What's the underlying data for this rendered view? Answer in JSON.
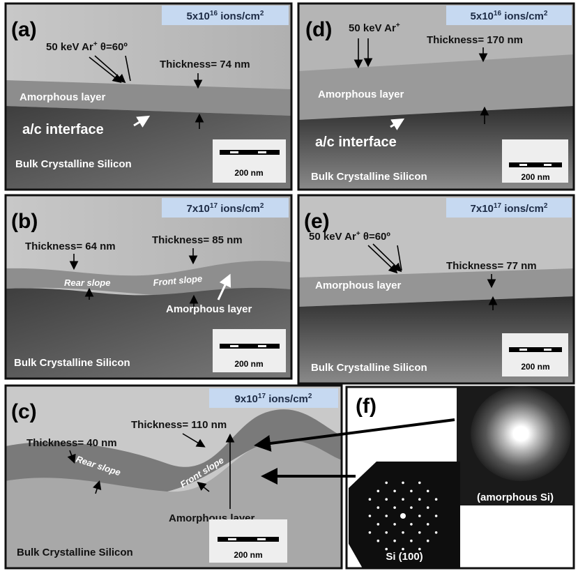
{
  "panels": {
    "a": {
      "label": "(a)",
      "dose": {
        "coef": "5x10",
        "exp": "16",
        "unit": " ions/cm",
        "unit_exp": "2"
      },
      "beam": {
        "text": "50 keV Ar",
        "sup": "+",
        "angle": " θ=60º"
      },
      "thickness": "Thickness= 74 nm",
      "layer": "Amorphous layer",
      "interface": "a/c interface",
      "bulk": "Bulk Crystalline Silicon",
      "scale": "200 nm"
    },
    "d": {
      "label": "(d)",
      "dose": {
        "coef": "5x10",
        "exp": "16",
        "unit": " ions/cm",
        "unit_exp": "2"
      },
      "beam": {
        "text": "50 keV Ar",
        "sup": "+"
      },
      "thickness": "Thickness= 170 nm",
      "layer": "Amorphous layer",
      "interface": "a/c interface",
      "bulk": "Bulk Crystalline Silicon",
      "scale": "200 nm"
    },
    "b": {
      "label": "(b)",
      "dose": {
        "coef": "7x10",
        "exp": "17",
        "unit": " ions/cm",
        "unit_exp": "2"
      },
      "thickness_rear": "Thickness= 64 nm",
      "thickness_front": "Thickness= 85 nm",
      "rear": "Rear slope",
      "front": "Front slope",
      "layer": "Amorphous layer",
      "bulk": "Bulk Crystalline Silicon",
      "scale": "200 nm"
    },
    "e": {
      "label": "(e)",
      "dose": {
        "coef": "7x10",
        "exp": "17",
        "unit": " ions/cm",
        "unit_exp": "2"
      },
      "beam": {
        "text": "50 keV Ar",
        "sup": "+",
        "angle": " θ=60º"
      },
      "thickness": "Thickness= 77 nm",
      "layer": "Amorphous layer",
      "bulk": "Bulk Crystalline Silicon",
      "scale": "200 nm"
    },
    "c": {
      "label": "(c)",
      "dose": {
        "coef": "9x10",
        "exp": "17",
        "unit": " ions/cm",
        "unit_exp": "2"
      },
      "thickness_rear": "Thickness= 40 nm",
      "thickness_front": "Thickness= 110 nm",
      "rear": "Rear slope",
      "front": "Front slope",
      "layer": "Amorphous layer",
      "bulk": "Bulk Crystalline Silicon",
      "scale": "200 nm"
    },
    "f": {
      "label": "(f)",
      "amorphous": "(amorphous Si)",
      "crystal": "Si (100)"
    }
  }
}
